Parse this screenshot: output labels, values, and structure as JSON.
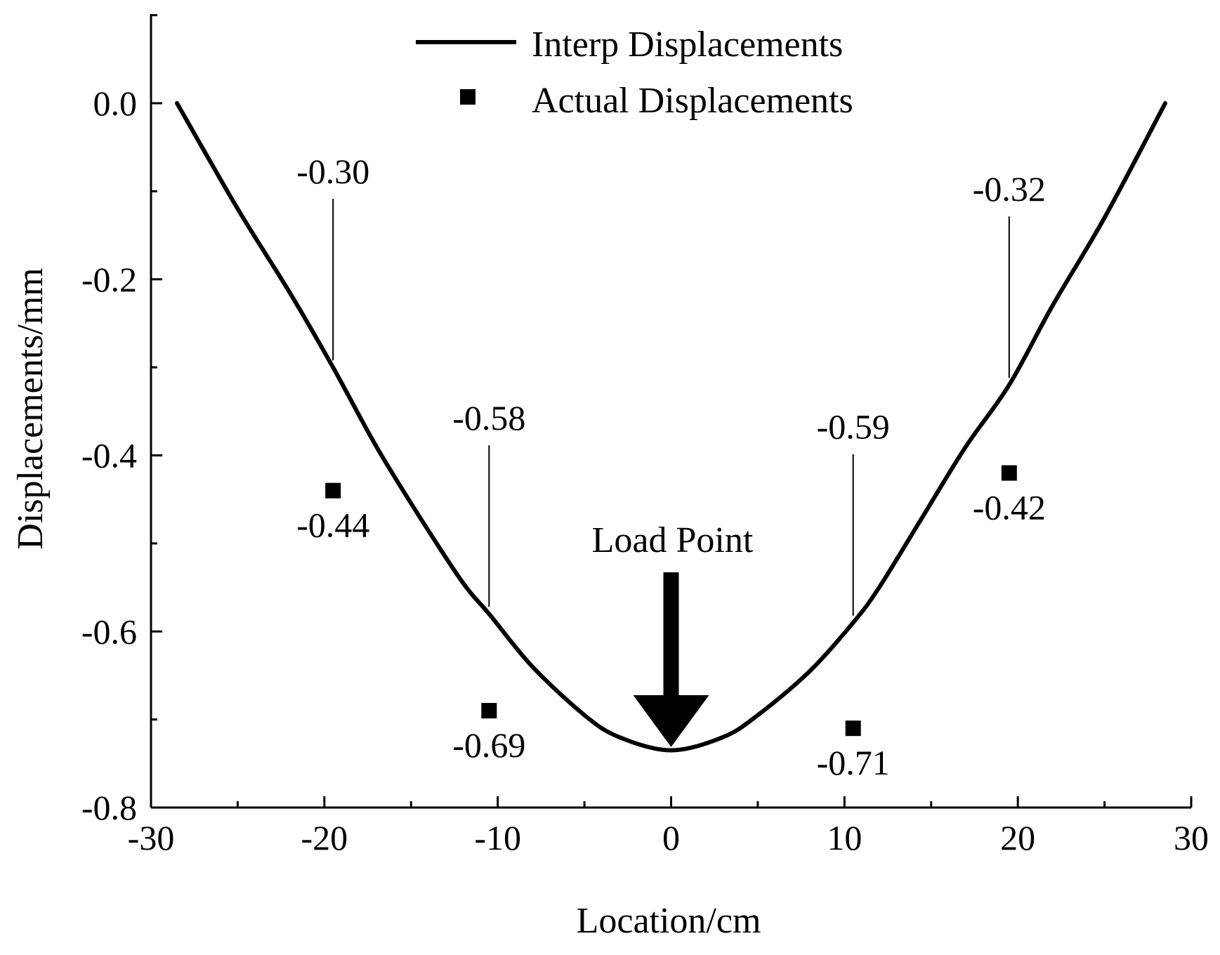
{
  "chart_data": {
    "type": "line",
    "xlabel": "Location/cm",
    "ylabel": "Displacements/mm",
    "xlim": [
      -30,
      30
    ],
    "ylim": [
      -0.8,
      0.1
    ],
    "xticks": [
      -30,
      -20,
      -10,
      0,
      10,
      20,
      30
    ],
    "yticks": [
      0.0,
      -0.2,
      -0.4,
      -0.6,
      -0.8
    ],
    "xtick_labels": [
      "-30",
      "-20",
      "-10",
      "0",
      "10",
      "20",
      "30"
    ],
    "ytick_labels": [
      "0.0",
      "-0.2",
      "-0.4",
      "-0.6",
      "-0.8"
    ],
    "legend_position": "top-center",
    "series": [
      {
        "name": "Interp Displacements",
        "style": "line",
        "color": "#000000",
        "x": [
          -28.5,
          -25,
          -22,
          -19.5,
          -17,
          -14.5,
          -12,
          -10.5,
          -8,
          -5,
          -3,
          0,
          3,
          5,
          8,
          10.5,
          12,
          14.5,
          17,
          19.5,
          22,
          25,
          28.5
        ],
        "y": [
          0.0,
          -0.12,
          -0.215,
          -0.3,
          -0.39,
          -0.47,
          -0.545,
          -0.58,
          -0.64,
          -0.695,
          -0.72,
          -0.735,
          -0.72,
          -0.695,
          -0.645,
          -0.59,
          -0.55,
          -0.47,
          -0.39,
          -0.32,
          -0.23,
          -0.13,
          0.0
        ]
      },
      {
        "name": "Actual Displacements",
        "style": "scatter",
        "marker": "square",
        "color": "#000000",
        "x": [
          -19.5,
          -10.5,
          10.5,
          19.5
        ],
        "y": [
          -0.44,
          -0.69,
          -0.71,
          -0.42
        ]
      }
    ],
    "annotations": [
      {
        "text": "-0.30",
        "x": -19.5,
        "y": -0.3,
        "callout": "line"
      },
      {
        "text": "-0.58",
        "x": -10.5,
        "y": -0.58,
        "callout": "line"
      },
      {
        "text": "-0.59",
        "x": 10.5,
        "y": -0.59,
        "callout": "line"
      },
      {
        "text": "-0.32",
        "x": 19.5,
        "y": -0.32,
        "callout": "line"
      },
      {
        "text": "-0.44",
        "x": -19.5,
        "y": -0.44,
        "callout": "below"
      },
      {
        "text": "-0.69",
        "x": -10.5,
        "y": -0.69,
        "callout": "below"
      },
      {
        "text": "-0.71",
        "x": 10.5,
        "y": -0.71,
        "callout": "below"
      },
      {
        "text": "-0.42",
        "x": 19.5,
        "y": -0.42,
        "callout": "below"
      }
    ],
    "load_point": {
      "text": "Load Point",
      "x": 0,
      "y": -0.72
    }
  }
}
